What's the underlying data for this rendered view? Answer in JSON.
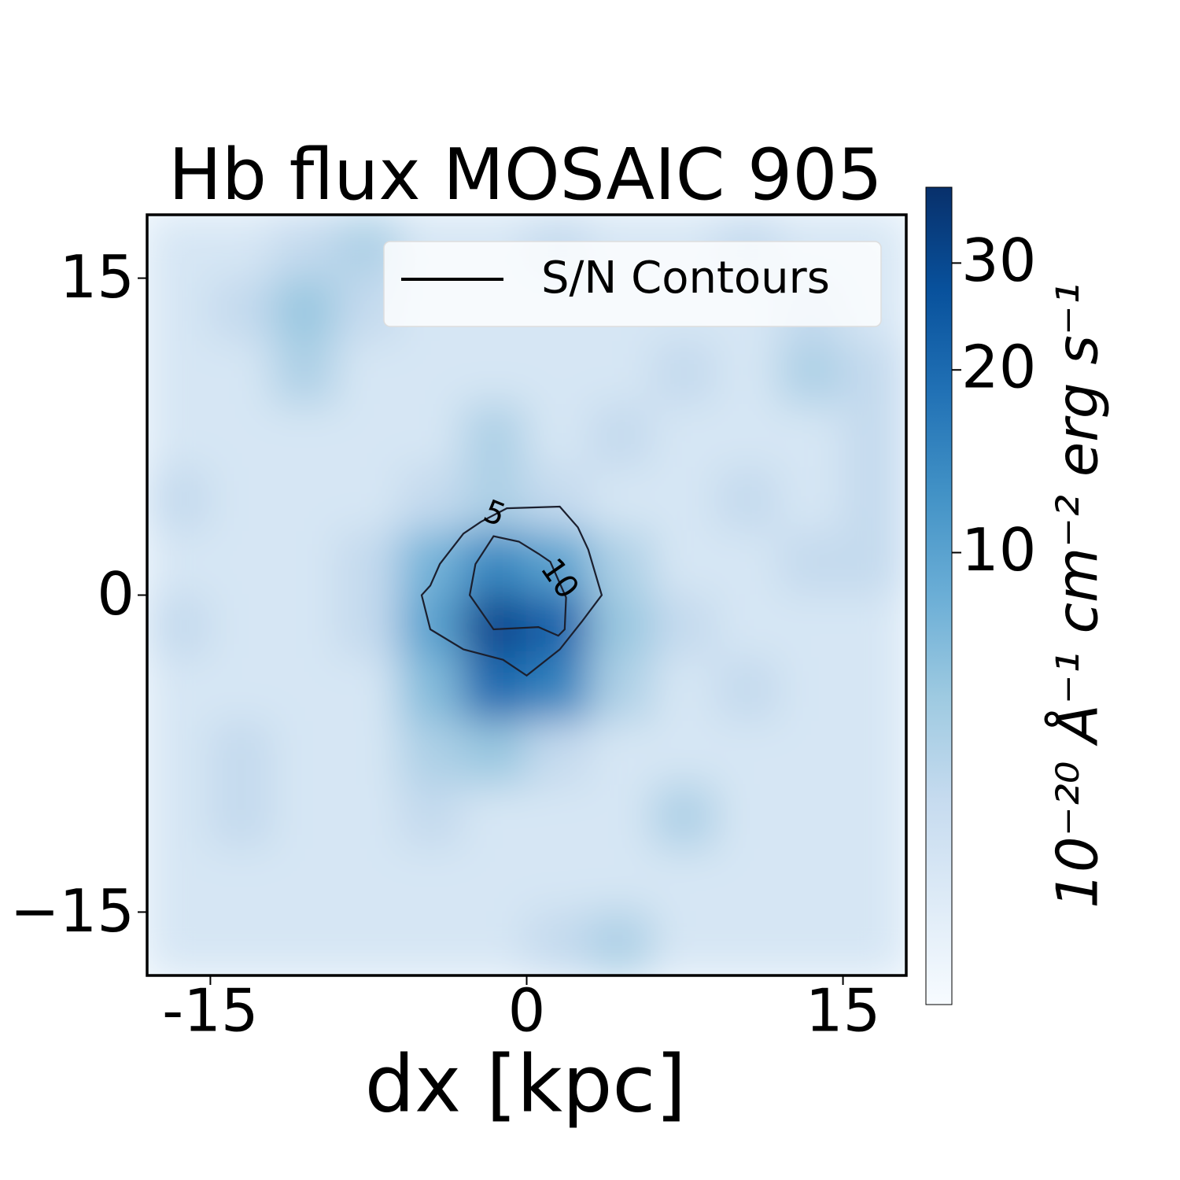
{
  "chart_data": {
    "type": "heatmap",
    "title": "Hb flux MOSAIC 905",
    "xlabel": "dx [kpc]",
    "xlim": [
      -18,
      18
    ],
    "ylim": [
      -18,
      18
    ],
    "xticks": [
      -15,
      0,
      15
    ],
    "yticks": [
      {
        "value": 15,
        "label": "15"
      },
      {
        "value": 0,
        "label": "0"
      },
      {
        "value": -15,
        "label": "−15"
      }
    ],
    "grid_x": [
      -16.5,
      -13.5,
      -10.5,
      -7.5,
      -4.5,
      -1.5,
      1.5,
      4.5,
      7.5,
      10.5,
      13.5,
      16.5
    ],
    "grid_y": [
      16.5,
      13.5,
      10.5,
      7.5,
      4.5,
      1.5,
      -1.5,
      -4.5,
      -7.5,
      -10.5,
      -13.5,
      -16.5
    ],
    "z": [
      [
        3,
        3,
        4,
        5,
        3,
        3,
        4,
        3,
        3,
        4,
        3,
        3
      ],
      [
        3,
        4,
        6,
        4,
        3,
        3,
        3,
        3,
        3,
        3,
        4,
        3
      ],
      [
        3,
        3,
        5,
        3,
        3,
        3,
        3,
        3,
        4,
        3,
        5,
        4
      ],
      [
        3,
        3,
        3,
        3,
        3,
        5,
        3,
        4,
        3,
        3,
        3,
        4
      ],
      [
        4,
        3,
        3,
        3,
        4,
        5,
        4,
        3,
        3,
        4,
        3,
        4
      ],
      [
        3,
        3,
        3,
        4,
        8,
        14,
        10,
        5,
        3,
        3,
        4,
        4
      ],
      [
        4,
        3,
        3,
        4,
        10,
        30,
        22,
        6,
        4,
        3,
        3,
        3
      ],
      [
        3,
        3,
        3,
        3,
        7,
        20,
        15,
        5,
        3,
        4,
        3,
        3
      ],
      [
        3,
        4,
        3,
        3,
        5,
        6,
        4,
        3,
        3,
        3,
        3,
        3
      ],
      [
        3,
        4,
        3,
        3,
        4,
        3,
        3,
        3,
        5,
        3,
        3,
        3
      ],
      [
        3,
        3,
        3,
        3,
        3,
        3,
        3,
        3,
        3,
        3,
        3,
        3
      ],
      [
        3,
        3,
        3,
        3,
        3,
        3,
        4,
        5,
        3,
        3,
        3,
        3
      ]
    ],
    "colormap": [
      "#f7fbff",
      "#deebf7",
      "#c6dbef",
      "#9ecae1",
      "#6baed6",
      "#4292c6",
      "#2171b5",
      "#08519c",
      "#08306b"
    ],
    "color_scale": "log",
    "clim": [
      1.8,
      40
    ],
    "cticks": [
      10,
      20,
      30
    ],
    "colorbar_label": "10⁻²⁰ Å⁻¹ cm⁻² erg s⁻¹",
    "contours": [
      {
        "level": 5,
        "color": "#1b1f2e",
        "x": [
          -0.94,
          1.57,
          2.43,
          2.92,
          3.56,
          2.62,
          1.57,
          0,
          -1.12,
          -3.0,
          -4.57,
          -4.98,
          -4.57,
          -4.12,
          -3.0,
          -2.17
        ],
        "y": [
          4.11,
          4.19,
          3.21,
          2.15,
          0,
          -1.25,
          -2.57,
          -3.81,
          -3.06,
          -2.57,
          -1.62,
          0,
          0.45,
          1.47,
          2.91,
          3.47
        ]
      },
      {
        "level": 10,
        "color": "#1b1f2e",
        "x": [
          -1.57,
          -0.37,
          0.56,
          1.12,
          1.87,
          1.8,
          1.5,
          0.56,
          -1.57,
          -2.7,
          -2.43
        ],
        "y": [
          2.79,
          2.53,
          1.96,
          1.58,
          -0.11,
          -1.62,
          -1.92,
          -1.51,
          -1.62,
          0,
          1.47
        ]
      }
    ],
    "legend": {
      "label": "S/N Contours",
      "loc": "upper right",
      "color": "#000000"
    }
  }
}
